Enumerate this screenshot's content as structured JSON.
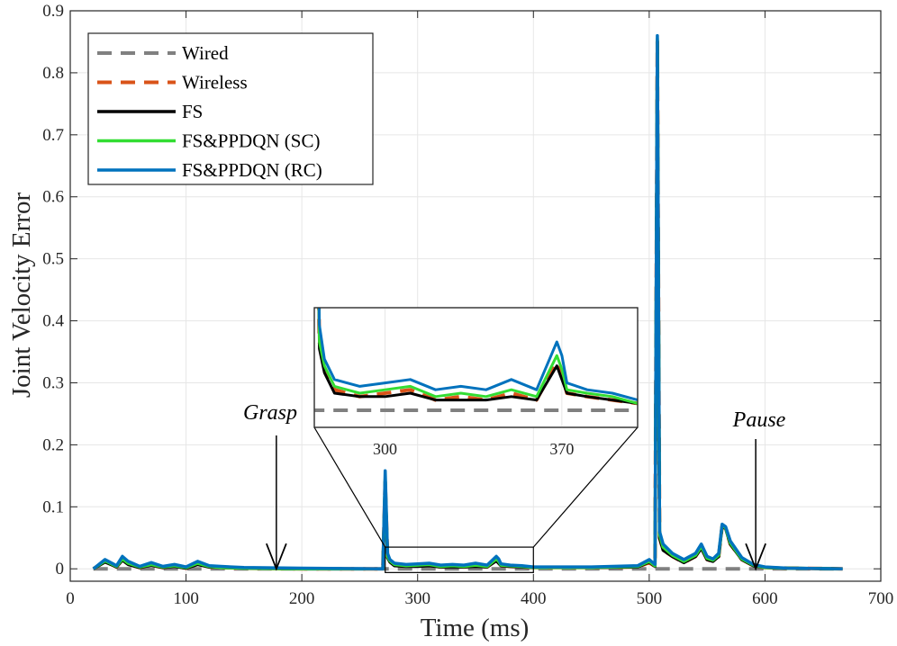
{
  "chart_data": {
    "type": "line",
    "xlabel": "Time (ms)",
    "ylabel": "Joint Velocity Error",
    "xlim": [
      0,
      700
    ],
    "ylim": [
      -0.02,
      0.9
    ],
    "xticks": [
      0,
      100,
      200,
      300,
      400,
      500,
      600,
      700
    ],
    "yticks": [
      0,
      0.1,
      0.2,
      0.3,
      0.4,
      0.5,
      0.6,
      0.7,
      0.8,
      0.9
    ],
    "xtick_labels": [
      "0",
      "100",
      "200",
      "300",
      "400",
      "500",
      "600",
      "700"
    ],
    "ytick_labels": [
      "0",
      "0.1",
      "0.2",
      "0.3",
      "0.4",
      "0.5",
      "0.6",
      "0.7",
      "0.8",
      "0.9"
    ],
    "grid": true,
    "legend_position": "top-left",
    "series": [
      {
        "name": "Wired",
        "color": "#808080",
        "dash": true,
        "x": [
          20,
          667
        ],
        "y": [
          0,
          0
        ]
      },
      {
        "name": "Wireless",
        "color": "#D95319",
        "dash": true,
        "x": [
          20,
          30,
          40,
          45,
          50,
          60,
          70,
          80,
          90,
          100,
          110,
          120,
          130,
          150,
          200,
          270,
          272,
          274,
          276,
          280,
          290,
          300,
          310,
          320,
          330,
          340,
          350,
          360,
          368,
          370,
          372,
          380,
          390,
          400,
          450,
          490,
          500,
          505,
          507,
          509,
          512,
          520,
          530,
          540,
          545,
          550,
          555,
          560,
          563,
          566,
          570,
          580,
          590,
          600,
          620,
          667
        ],
        "y": [
          0,
          0.012,
          0.003,
          0.015,
          0.008,
          0.002,
          0.006,
          0.002,
          0.005,
          0.001,
          0.008,
          0.003,
          0.002,
          0.001,
          0,
          0,
          0.14,
          0.02,
          0.012,
          0.006,
          0.004,
          0.005,
          0.006,
          0.003,
          0.004,
          0.003,
          0.005,
          0.003,
          0.014,
          0.01,
          0.005,
          0.004,
          0.003,
          0.002,
          0.002,
          0.003,
          0.01,
          0.004,
          0.85,
          0.05,
          0.03,
          0.02,
          0.01,
          0.02,
          0.035,
          0.015,
          0.012,
          0.02,
          0.07,
          0.065,
          0.04,
          0.015,
          0.005,
          0.002,
          0.001,
          0
        ]
      },
      {
        "name": "FS",
        "color": "#000000",
        "dash": false,
        "x": [
          20,
          30,
          40,
          45,
          50,
          60,
          70,
          80,
          90,
          100,
          110,
          120,
          130,
          150,
          200,
          270,
          272,
          274,
          276,
          280,
          290,
          300,
          310,
          320,
          330,
          340,
          350,
          360,
          368,
          370,
          372,
          380,
          390,
          400,
          450,
          490,
          500,
          505,
          507,
          509,
          512,
          520,
          530,
          540,
          545,
          550,
          555,
          560,
          563,
          566,
          570,
          580,
          590,
          600,
          620,
          667
        ],
        "y": [
          0,
          0.011,
          0.003,
          0.014,
          0.007,
          0.002,
          0.006,
          0.002,
          0.004,
          0.001,
          0.007,
          0.003,
          0.002,
          0.001,
          0,
          0,
          0.142,
          0.018,
          0.011,
          0.005,
          0.004,
          0.004,
          0.005,
          0.003,
          0.003,
          0.003,
          0.004,
          0.003,
          0.013,
          0.009,
          0.005,
          0.004,
          0.003,
          0.002,
          0.002,
          0.003,
          0.011,
          0.004,
          0.852,
          0.05,
          0.03,
          0.02,
          0.01,
          0.02,
          0.033,
          0.015,
          0.012,
          0.02,
          0.07,
          0.065,
          0.04,
          0.015,
          0.005,
          0.002,
          0.001,
          0
        ]
      },
      {
        "name": "FS&PPDQN (SC)",
        "color": "#33DD33",
        "dash": false,
        "x": [
          20,
          30,
          40,
          45,
          50,
          60,
          70,
          80,
          90,
          100,
          110,
          120,
          130,
          150,
          200,
          270,
          272,
          274,
          276,
          280,
          290,
          300,
          310,
          320,
          330,
          340,
          350,
          360,
          368,
          370,
          372,
          380,
          390,
          400,
          450,
          490,
          500,
          505,
          507,
          509,
          512,
          520,
          530,
          540,
          545,
          550,
          555,
          560,
          563,
          566,
          570,
          580,
          590,
          600,
          620,
          667
        ],
        "y": [
          0,
          0.013,
          0.004,
          0.016,
          0.009,
          0.003,
          0.007,
          0.003,
          0.005,
          0.002,
          0.009,
          0.004,
          0.002,
          0.001,
          0,
          0,
          0.145,
          0.02,
          0.013,
          0.007,
          0.005,
          0.006,
          0.007,
          0.004,
          0.005,
          0.004,
          0.006,
          0.004,
          0.016,
          0.012,
          0.006,
          0.005,
          0.004,
          0.002,
          0.002,
          0.004,
          0.012,
          0.005,
          0.855,
          0.055,
          0.035,
          0.022,
          0.012,
          0.022,
          0.036,
          0.017,
          0.014,
          0.022,
          0.071,
          0.066,
          0.042,
          0.016,
          0.006,
          0.002,
          0.001,
          0
        ]
      },
      {
        "name": "FS&PPDQN (RC)",
        "color": "#0072BD",
        "dash": false,
        "x": [
          20,
          30,
          40,
          45,
          50,
          60,
          70,
          80,
          90,
          100,
          110,
          120,
          130,
          150,
          200,
          270,
          272,
          274,
          276,
          280,
          290,
          300,
          310,
          320,
          330,
          340,
          350,
          360,
          368,
          370,
          372,
          380,
          390,
          400,
          450,
          490,
          500,
          505,
          507,
          509,
          512,
          520,
          530,
          540,
          545,
          550,
          555,
          560,
          563,
          566,
          570,
          580,
          590,
          600,
          620,
          667
        ],
        "y": [
          0,
          0.015,
          0.005,
          0.02,
          0.012,
          0.004,
          0.01,
          0.004,
          0.007,
          0.003,
          0.012,
          0.005,
          0.004,
          0.002,
          0.001,
          0,
          0.158,
          0.025,
          0.015,
          0.009,
          0.007,
          0.008,
          0.009,
          0.006,
          0.007,
          0.006,
          0.009,
          0.006,
          0.02,
          0.016,
          0.008,
          0.006,
          0.005,
          0.003,
          0.003,
          0.005,
          0.015,
          0.007,
          0.86,
          0.06,
          0.04,
          0.025,
          0.015,
          0.025,
          0.04,
          0.02,
          0.016,
          0.025,
          0.072,
          0.068,
          0.045,
          0.018,
          0.007,
          0.003,
          0.001,
          0
        ]
      }
    ],
    "annotations": [
      {
        "text": "Grasp",
        "arrow_x": 178,
        "arrow_y": 0.0
      },
      {
        "text": "Pause",
        "arrow_x": 592,
        "arrow_y": 0.0
      }
    ],
    "inset": {
      "x_range": [
        272,
        400
      ],
      "y_range": [
        -0.005,
        0.03
      ],
      "xtick_labels": [
        "300",
        "370"
      ],
      "xticks": [
        300,
        370
      ]
    }
  }
}
